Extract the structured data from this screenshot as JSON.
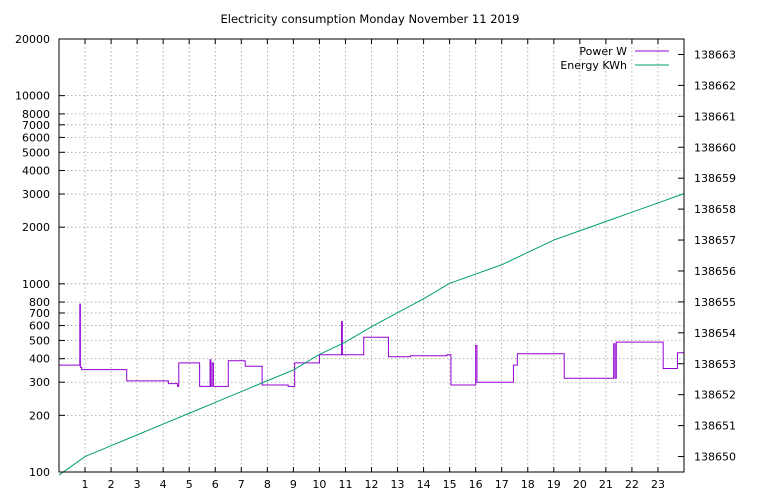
{
  "chart_data": {
    "type": "line",
    "title": "Electricity consumption Monday November 11 2019",
    "xlabel": "",
    "ylabel": "",
    "y2label": "",
    "xlim": [
      0,
      24
    ],
    "ylim": [
      100,
      20000
    ],
    "y_scale": "log",
    "y2lim": [
      138649.5,
      138663.5
    ],
    "grid": true,
    "legend_position": "top-right",
    "x_ticks": [
      1,
      2,
      3,
      4,
      5,
      6,
      7,
      8,
      9,
      10,
      11,
      12,
      13,
      14,
      15,
      16,
      17,
      18,
      19,
      20,
      21,
      22,
      23
    ],
    "y_ticks": [
      100,
      200,
      300,
      400,
      500,
      600,
      700,
      800,
      1000,
      2000,
      3000,
      4000,
      5000,
      6000,
      7000,
      8000,
      10000,
      20000
    ],
    "y_tick_labels": [
      "100",
      "200",
      "300",
      "400",
      "500",
      "600",
      "700",
      "800",
      "1000",
      "2000",
      "3000",
      "4000",
      "5000",
      "6000",
      "7000",
      "8000",
      "10000",
      "20000"
    ],
    "y2_ticks": [
      138650,
      138651,
      138652,
      138653,
      138654,
      138655,
      138656,
      138657,
      138658,
      138659,
      138660,
      138661,
      138662,
      138663
    ],
    "series": [
      {
        "name": "Power W",
        "axis": "y",
        "color": "#9400d3",
        "x": [
          0,
          0.8,
          0.8,
          0.82,
          0.82,
          0.87,
          0.87,
          2.6,
          2.6,
          4.2,
          4.2,
          4.55,
          4.55,
          4.6,
          4.6,
          5.4,
          5.4,
          5.8,
          5.8,
          5.83,
          5.83,
          5.88,
          5.88,
          5.93,
          5.93,
          6.5,
          6.5,
          7.15,
          7.15,
          7.8,
          7.8,
          8.8,
          8.8,
          9.05,
          9.05,
          10.0,
          10.0,
          10.85,
          10.85,
          10.88,
          10.88,
          11.7,
          11.7,
          12.65,
          12.65,
          13.5,
          13.5,
          14.9,
          14.9,
          15.05,
          15.05,
          16.0,
          16.0,
          16.05,
          16.05,
          17.45,
          17.45,
          17.6,
          17.6,
          19.4,
          19.4,
          21.3,
          21.3,
          21.35,
          21.35,
          21.4,
          21.4,
          23.2,
          23.2,
          23.75,
          23.75,
          24
        ],
        "y": [
          370,
          370,
          780,
          780,
          360,
          360,
          350,
          350,
          305,
          305,
          295,
          295,
          285,
          285,
          380,
          380,
          285,
          285,
          395,
          395,
          285,
          285,
          380,
          380,
          285,
          285,
          390,
          390,
          365,
          365,
          290,
          290,
          285,
          285,
          380,
          380,
          420,
          420,
          630,
          630,
          420,
          420,
          520,
          520,
          410,
          410,
          415,
          415,
          420,
          420,
          290,
          290,
          470,
          470,
          300,
          300,
          370,
          370,
          425,
          425,
          315,
          315,
          480,
          480,
          315,
          315,
          490,
          490,
          355,
          355,
          430,
          430
        ]
      },
      {
        "name": "Energy KWh",
        "axis": "y2",
        "color": "#009e73",
        "x": [
          0,
          1,
          2,
          3,
          4,
          5,
          6,
          7,
          8,
          9,
          10,
          11,
          12,
          13,
          14,
          15,
          16,
          17,
          18,
          19,
          20,
          21,
          22,
          23,
          24
        ],
        "y": [
          138649.4,
          138650.0,
          138650.35,
          138650.7,
          138651.05,
          138651.4,
          138651.75,
          138652.1,
          138652.45,
          138652.8,
          138653.3,
          138653.7,
          138654.2,
          138654.65,
          138655.1,
          138655.6,
          138655.9,
          138656.2,
          138656.6,
          138657.0,
          138657.3,
          138657.6,
          138657.9,
          138658.2,
          138658.5
        ]
      }
    ]
  }
}
